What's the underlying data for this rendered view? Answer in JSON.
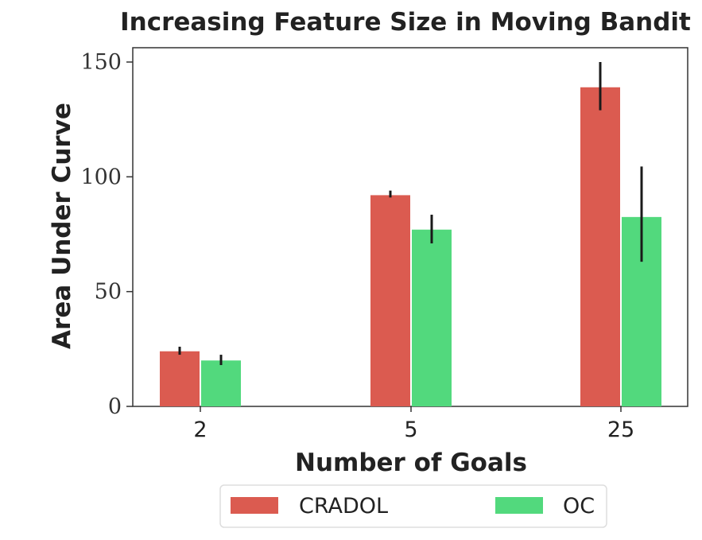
{
  "chart_data": {
    "type": "bar",
    "title": "Increasing Feature Size in Moving Bandit",
    "xlabel": "Number of Goals",
    "ylabel": "Area Under Curve",
    "categories": [
      "2",
      "5",
      "25"
    ],
    "ylim": [
      0,
      150
    ],
    "yticks": [
      "0",
      "50",
      "100",
      "150"
    ],
    "grid": false,
    "legend_position": "bottom-center outside",
    "series": [
      {
        "name": "CRADOL",
        "color": "#db5b50",
        "values": [
          24,
          92,
          139
        ],
        "err_low": [
          22.5,
          91,
          129
        ],
        "err_high": [
          26,
          94,
          150
        ]
      },
      {
        "name": "OC",
        "color": "#52d97d",
        "values": [
          20,
          77,
          82.5
        ],
        "err_low": [
          18,
          71,
          63
        ],
        "err_high": [
          22.5,
          83.5,
          104.5
        ]
      }
    ]
  }
}
